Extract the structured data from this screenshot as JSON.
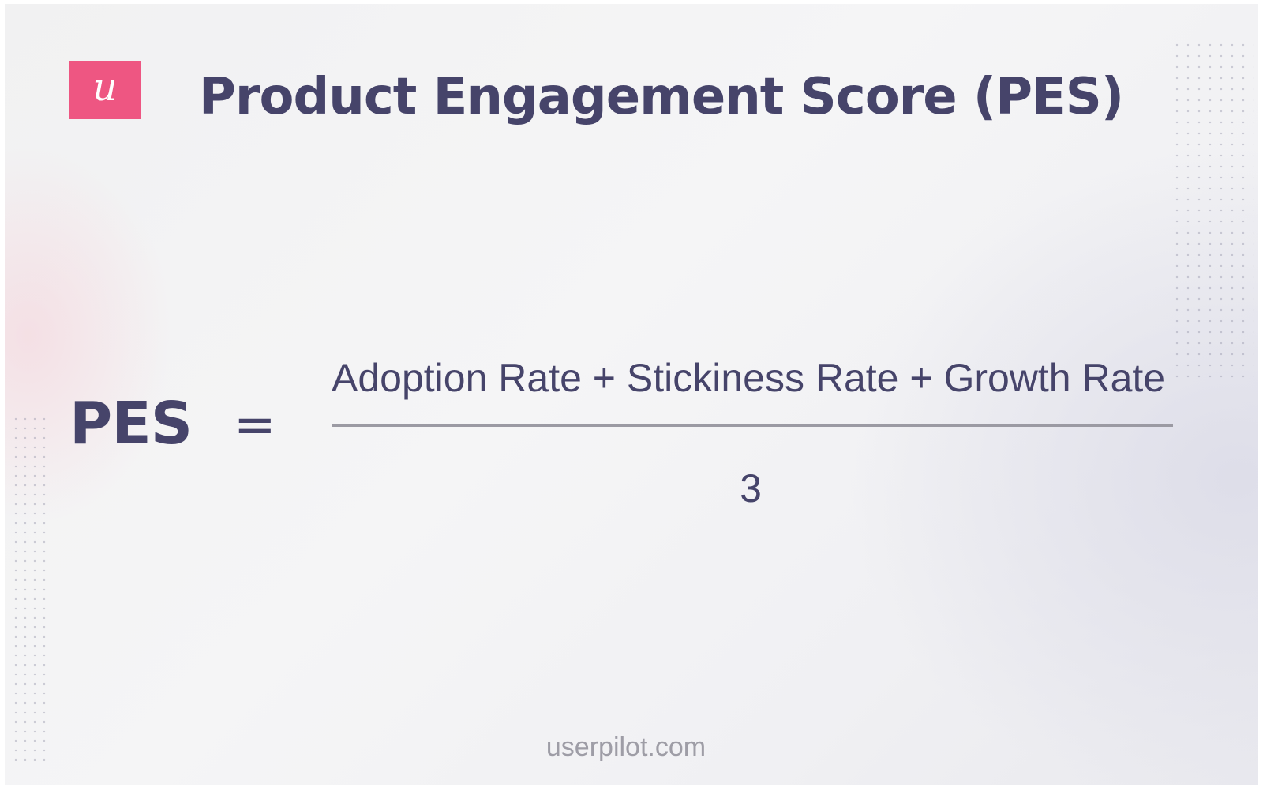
{
  "brand": {
    "logo_letter": "u",
    "logo_color": "#ee5682",
    "footer_url": "userpilot.com"
  },
  "title": "Product Engagement Score (PES)",
  "formula": {
    "lhs": "PES",
    "operator": "=",
    "numerator": "Adoption Rate + Stickiness Rate + Growth Rate",
    "denominator": "3"
  },
  "colors": {
    "text": "#46446a",
    "muted": "#9e9da6",
    "accent": "#ee5682"
  }
}
